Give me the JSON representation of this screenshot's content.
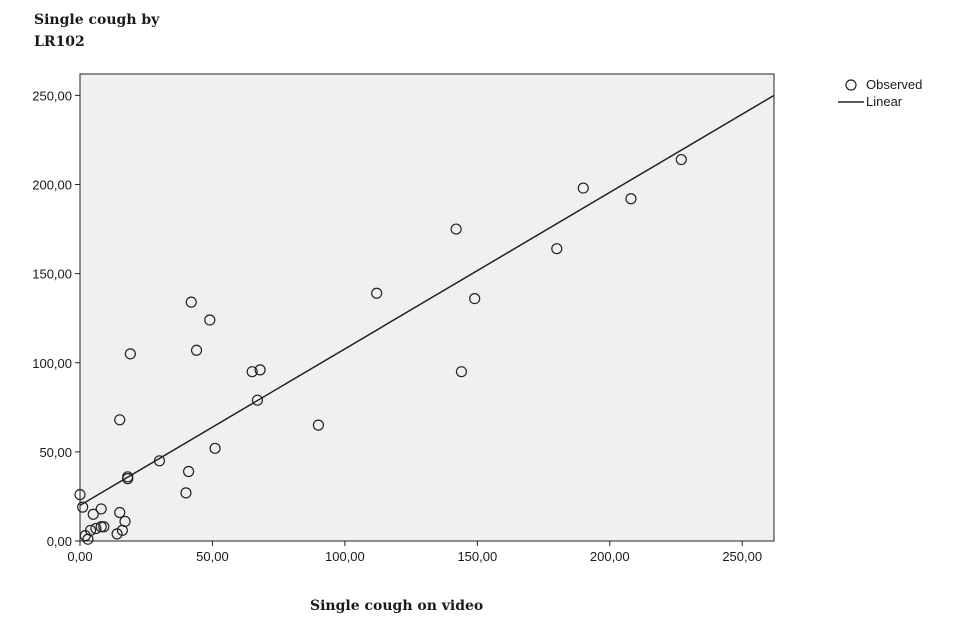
{
  "chart_data": {
    "type": "scatter",
    "ylabel": "Single cough by LR102",
    "ylabel_lines": [
      "Single cough by",
      "LR102"
    ],
    "xlabel": "Single cough on video",
    "xlim": [
      0,
      262
    ],
    "ylim": [
      0,
      262
    ],
    "x_ticks": [
      0,
      50,
      100,
      150,
      200,
      250
    ],
    "y_ticks": [
      0,
      50,
      100,
      150,
      200,
      250
    ],
    "x_tick_labels": [
      "0,00",
      "50,00",
      "100,00",
      "150,00",
      "200,00",
      "250,00"
    ],
    "y_tick_labels": [
      "0,00",
      "50,00",
      "100,00",
      "150,00",
      "200,00",
      "250,00"
    ],
    "grid": false,
    "legend_position": "top-right outside",
    "plot_background": "#f0f0f0",
    "series": [
      {
        "name": "Observed",
        "marker": "open-circle",
        "points": [
          [
            0,
            26
          ],
          [
            1,
            19
          ],
          [
            2,
            3
          ],
          [
            3,
            1
          ],
          [
            4,
            6
          ],
          [
            5,
            15
          ],
          [
            6,
            7
          ],
          [
            8,
            8
          ],
          [
            8,
            18
          ],
          [
            9,
            8
          ],
          [
            14,
            4
          ],
          [
            15,
            16
          ],
          [
            16,
            6
          ],
          [
            17,
            11
          ],
          [
            15,
            68
          ],
          [
            18,
            35
          ],
          [
            18,
            36
          ],
          [
            19,
            105
          ],
          [
            30,
            45
          ],
          [
            40,
            27
          ],
          [
            41,
            39
          ],
          [
            42,
            134
          ],
          [
            44,
            107
          ],
          [
            49,
            124
          ],
          [
            51,
            52
          ],
          [
            65,
            95
          ],
          [
            67,
            79
          ],
          [
            68,
            96
          ],
          [
            90,
            65
          ],
          [
            112,
            139
          ],
          [
            142,
            175
          ],
          [
            144,
            95
          ],
          [
            149,
            136
          ],
          [
            180,
            164
          ],
          [
            190,
            198
          ],
          [
            208,
            192
          ],
          [
            227,
            214
          ]
        ]
      },
      {
        "name": "Linear",
        "type": "line",
        "points": [
          [
            0,
            20
          ],
          [
            262,
            250
          ]
        ]
      }
    ]
  }
}
